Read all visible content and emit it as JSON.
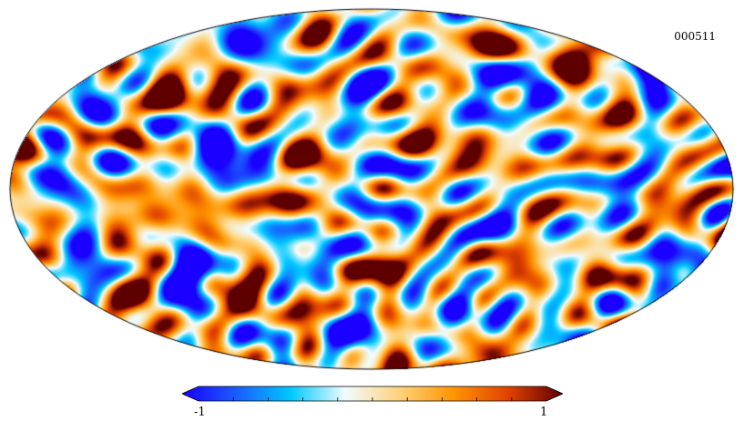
{
  "map": {
    "id_label": "000511",
    "projection": "mollweide",
    "description_colors": [
      "#0019ff",
      "#1a74ff",
      "#00d7ff",
      "#ffffff",
      "#ffd48a",
      "#ff8800",
      "#d93a00",
      "#5c0000"
    ]
  },
  "colorbar": {
    "min_label": "-1",
    "max_label": "1",
    "min": -1,
    "max": 1,
    "stops": [
      "#1a00ff",
      "#1b5cff",
      "#00c8ff",
      "#f0fcff",
      "#ffd27a",
      "#ff9400",
      "#e04100",
      "#5e0000"
    ]
  }
}
